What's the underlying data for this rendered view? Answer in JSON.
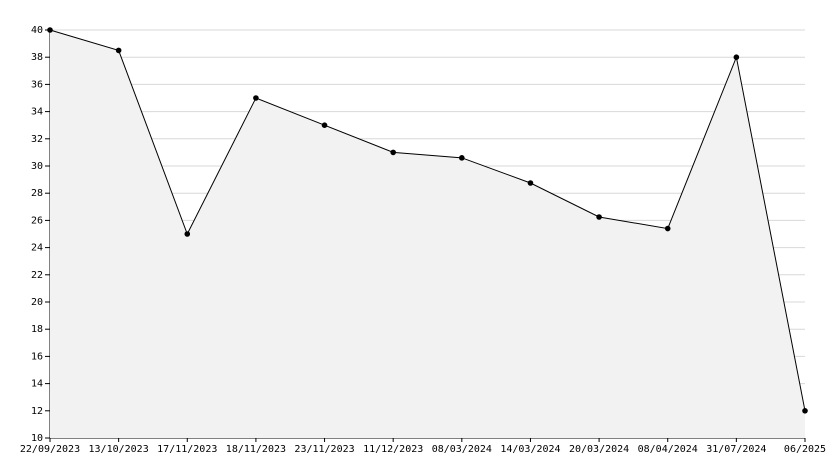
{
  "chart_data": {
    "type": "area",
    "categories": [
      "22/09/2023",
      "13/10/2023",
      "17/11/2023",
      "18/11/2023",
      "23/11/2023",
      "11/12/2023",
      "08/03/2024",
      "14/03/2024",
      "20/03/2024",
      "08/04/2024",
      "31/07/2024",
      "06/2025"
    ],
    "values": [
      40,
      38.5,
      25,
      35,
      33,
      31,
      30.6,
      28.75,
      26.25,
      25.4,
      38,
      12
    ],
    "color": "#000000",
    "fill": "#f2f2f2",
    "ylim": [
      10,
      40
    ],
    "yticks": [
      10,
      12,
      14,
      16,
      18,
      20,
      22,
      24,
      26,
      28,
      30,
      32,
      34,
      36,
      38,
      40
    ],
    "grid": true
  }
}
